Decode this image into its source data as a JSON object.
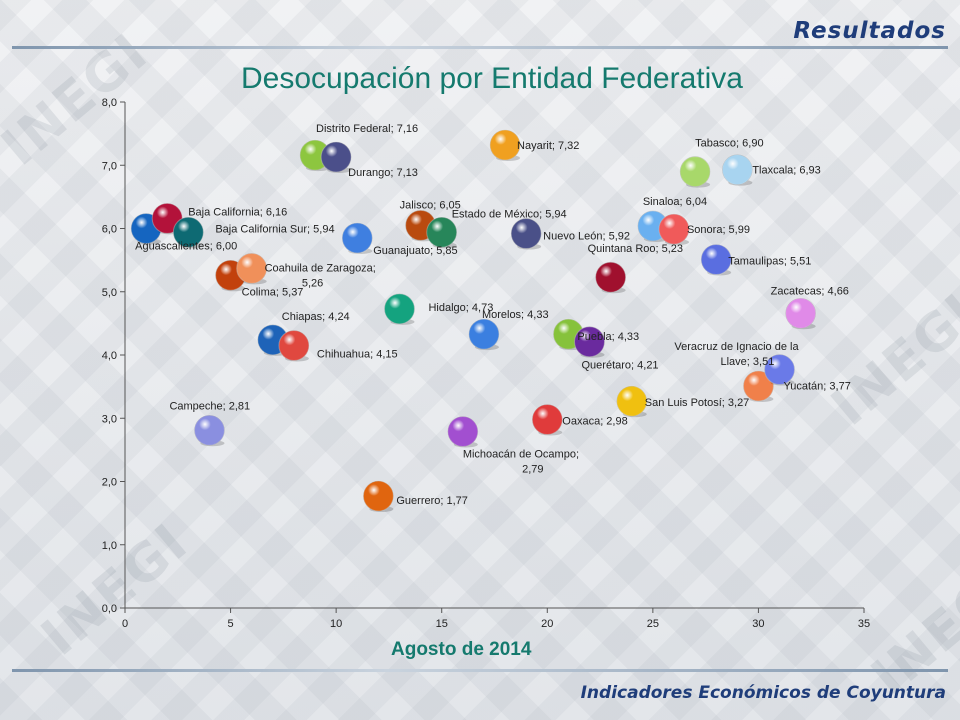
{
  "header": {
    "section_title": "Resultados"
  },
  "footer": {
    "text": "Indicadores Económicos de Coyuntura"
  },
  "watermark": {
    "text": "INEGI"
  },
  "chart_data": {
    "type": "scatter",
    "title": "Desocupación por Entidad Federativa",
    "subtitle": "Agosto de 2014",
    "xlim": [
      0,
      35
    ],
    "ylim": [
      0,
      8
    ],
    "x_ticks": [
      "0",
      "5",
      "10",
      "15",
      "20",
      "25",
      "30",
      "35"
    ],
    "y_ticks": [
      "0,0",
      "1,0",
      "2,0",
      "3,0",
      "4,0",
      "5,0",
      "6,0",
      "7,0",
      "8,0"
    ],
    "grid": false,
    "points": [
      {
        "x": 1,
        "y": 6.0,
        "label": "Aguascalientes; 6,00",
        "color": "#1565c0"
      },
      {
        "x": 2,
        "y": 6.16,
        "label": "Baja California; 6,16",
        "color": "#b3123a"
      },
      {
        "x": 3,
        "y": 5.94,
        "label": "Baja California Sur; 5,94",
        "color": "#0e6a73"
      },
      {
        "x": 4,
        "y": 2.81,
        "label": "Campeche; 2,81",
        "color": "#8a8fe0"
      },
      {
        "x": 5,
        "y": 5.26,
        "label": "Coahuila de Zaragoza; 5,26",
        "color": "#c2410c"
      },
      {
        "x": 6,
        "y": 5.37,
        "label": "Colima; 5,37",
        "color": "#f0905a"
      },
      {
        "x": 7,
        "y": 4.24,
        "label": "Chiapas; 4,24",
        "color": "#1e63b8"
      },
      {
        "x": 8,
        "y": 4.15,
        "label": "Chihuahua;  4,15",
        "color": "#e0483f"
      },
      {
        "x": 9,
        "y": 7.16,
        "label": "Distrito Federal; 7,16",
        "color": "#8dc63f"
      },
      {
        "x": 10,
        "y": 7.13,
        "label": "Durango; 7,13",
        "color": "#4b4f8a"
      },
      {
        "x": 11,
        "y": 5.85,
        "label": "Guanajuato; 5,85",
        "color": "#3f7fe0"
      },
      {
        "x": 12,
        "y": 1.77,
        "label": "Guerrero;  1,77",
        "color": "#e0650f"
      },
      {
        "x": 13,
        "y": 4.73,
        "label": "Hidalgo; 4,73",
        "color": "#14a37f"
      },
      {
        "x": 14,
        "y": 6.05,
        "label": "Jalisco; 6,05",
        "color": "#b94a0f"
      },
      {
        "x": 15,
        "y": 5.94,
        "label": "Estado de México; 5,94",
        "color": "#27865a"
      },
      {
        "x": 16,
        "y": 2.79,
        "label": "Michoacán de Ocampo; 2,79",
        "color": "#a24fd0"
      },
      {
        "x": 17,
        "y": 4.33,
        "label": "Morelos; 4,33",
        "color": "#3b7fe0"
      },
      {
        "x": 18,
        "y": 7.32,
        "label": "Nayarit; 7,32",
        "color": "#f0a020"
      },
      {
        "x": 19,
        "y": 5.92,
        "label": "Nuevo León; 5,92",
        "color": "#4a5088"
      },
      {
        "x": 20,
        "y": 2.98,
        "label": "Oaxaca; 2,98",
        "color": "#e03b3b"
      },
      {
        "x": 21,
        "y": 4.33,
        "label": "Puebla; 4,33",
        "color": "#86c23b"
      },
      {
        "x": 22,
        "y": 4.21,
        "label": "Querétaro;  4,21",
        "color": "#6a2a9e"
      },
      {
        "x": 23,
        "y": 5.23,
        "label": "Quintana Roo; 5,23",
        "color": "#a0102e"
      },
      {
        "x": 24,
        "y": 3.27,
        "label": "San Luis Potosí; 3,27",
        "color": "#f0c010"
      },
      {
        "x": 25,
        "y": 6.04,
        "label": "Sinaloa; 6,04",
        "color": "#6ab0f0"
      },
      {
        "x": 26,
        "y": 5.99,
        "label": "Sonora; 5,99",
        "color": "#f05a5a"
      },
      {
        "x": 27,
        "y": 6.9,
        "label": "Tabasco; 6,90",
        "color": "#a8d86a"
      },
      {
        "x": 28,
        "y": 5.51,
        "label": "Tamaulipas; 5,51",
        "color": "#5a6ee0"
      },
      {
        "x": 29,
        "y": 6.93,
        "label": "Tlaxcala; 6,93",
        "color": "#a8d4f0"
      },
      {
        "x": 30,
        "y": 3.51,
        "label": "Veracruz  de Ignacio de la Llave; 3,51",
        "color": "#f0804a"
      },
      {
        "x": 31,
        "y": 3.77,
        "label": "Yucatán; 3,77",
        "color": "#6a7ae8"
      },
      {
        "x": 32,
        "y": 4.66,
        "label": "Zacatecas; 4,66",
        "color": "#e08ae8"
      }
    ]
  }
}
